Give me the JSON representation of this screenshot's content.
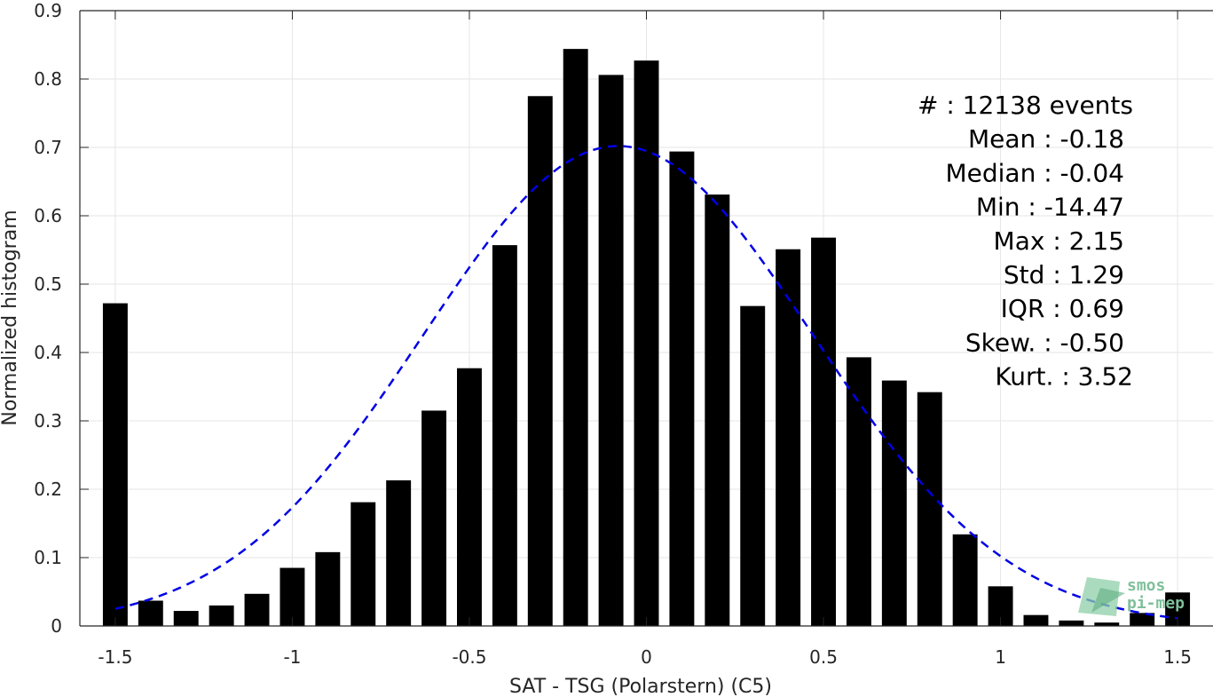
{
  "chart_data": {
    "type": "bar",
    "xlabel": "SAT - TSG (Polarstern) (C5)",
    "ylabel": "Normalized histogram",
    "xlim": [
      -1.6,
      1.6
    ],
    "ylim": [
      0,
      0.9
    ],
    "x_ticks": [
      -1.5,
      -1,
      -0.5,
      0,
      0.5,
      1,
      1.5
    ],
    "x_tick_labels": [
      "-1.5",
      "-1",
      "-0.5",
      "0",
      "0.5",
      "1",
      "1.5"
    ],
    "y_ticks": [
      0,
      0.1,
      0.2,
      0.3,
      0.4,
      0.5,
      0.6,
      0.7,
      0.8,
      0.9
    ],
    "y_tick_labels": [
      "0",
      "0.1",
      "0.2",
      "0.3",
      "0.4",
      "0.5",
      "0.6",
      "0.7",
      "0.8",
      "0.9"
    ],
    "grid": true,
    "bar_color": "#000000",
    "bar_width": 0.07,
    "bins": [
      -1.5,
      -1.4,
      -1.3,
      -1.2,
      -1.1,
      -1.0,
      -0.9,
      -0.8,
      -0.7,
      -0.6,
      -0.5,
      -0.4,
      -0.3,
      -0.2,
      -0.1,
      0.0,
      0.1,
      0.2,
      0.3,
      0.4,
      0.5,
      0.6,
      0.7,
      0.8,
      0.9,
      1.0,
      1.1,
      1.2,
      1.3,
      1.4,
      1.5
    ],
    "values": [
      0.472,
      0.037,
      0.022,
      0.03,
      0.047,
      0.085,
      0.108,
      0.181,
      0.213,
      0.315,
      0.377,
      0.557,
      0.775,
      0.844,
      0.806,
      0.827,
      0.694,
      0.631,
      0.468,
      0.551,
      0.568,
      0.393,
      0.359,
      0.342,
      0.134,
      0.058,
      0.016,
      0.008,
      0.005,
      0.019,
      0.049
    ],
    "fit_curve": {
      "style": "dashed",
      "color": "#0000e6",
      "mean": -0.08,
      "std": 0.55,
      "peak": 0.702,
      "x_range": [
        -1.5,
        1.5
      ]
    },
    "stats": [
      "#  : 12138 events",
      "Mean : -0.18",
      "Median : -0.04",
      "Min : -14.47",
      "Max : 2.15",
      "Std : 1.29",
      "IQR : 0.69",
      "Skew. : -0.50",
      "Kurt. : 3.52"
    ],
    "watermark": [
      "smos",
      "pi-mep"
    ]
  }
}
